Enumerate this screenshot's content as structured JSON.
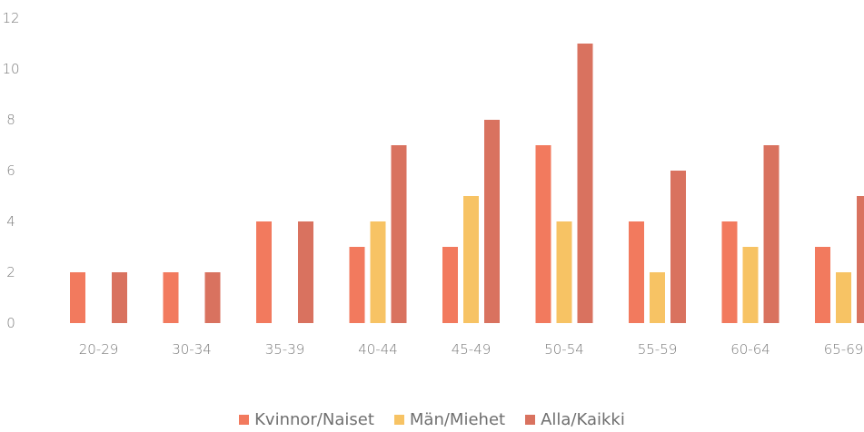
{
  "chart_data": {
    "type": "bar",
    "categories": [
      "20-29",
      "30-34",
      "35-39",
      "40-44",
      "45-49",
      "50-54",
      "55-59",
      "60-64",
      "65-69"
    ],
    "series": [
      {
        "name": "Kvinnor/Naiset",
        "color": "#F27A5E",
        "values": [
          2,
          2,
          4,
          3,
          3,
          7,
          4,
          4,
          3
        ]
      },
      {
        "name": "Män/Miehet",
        "color": "#F7C364",
        "values": [
          0,
          0,
          0,
          4,
          5,
          4,
          2,
          3,
          2
        ]
      },
      {
        "name": "Alla/Kaikki",
        "color": "#D9725F",
        "values": [
          2,
          2,
          4,
          7,
          8,
          11,
          6,
          7,
          5
        ]
      }
    ],
    "y_ticks": [
      "0",
      "2",
      "4",
      "6",
      "8",
      "10",
      "12"
    ],
    "ylim": [
      0,
      12
    ],
    "grid": false,
    "legend_position": "bottom"
  }
}
